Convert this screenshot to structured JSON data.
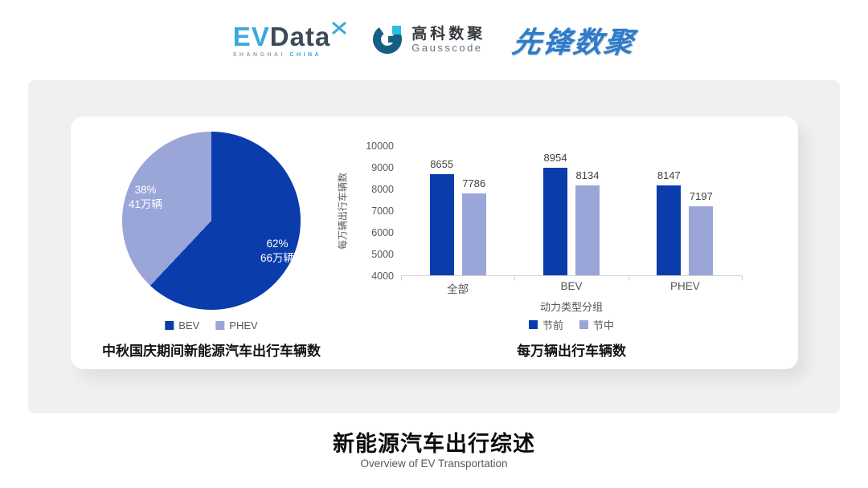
{
  "header": {
    "evdata": {
      "ev": "EV",
      "data": "Data",
      "sub1": "SHANGHAI",
      "sub2": "CHINA"
    },
    "gausscode": {
      "cn": "高科数聚",
      "en": "Gausscode"
    },
    "xianfeng": {
      "text": "先锋数聚"
    }
  },
  "colors": {
    "series_dark_blue": "#0b3cab",
    "series_light_blue": "#9aa5d8",
    "panel_gray": "#f0f0f0",
    "evdata_blue": "#38aadb",
    "evdata_dark": "#3e4a59",
    "gausscode_teal": "#155f82",
    "gausscode_cyan": "#29bfe2",
    "xianfeng_blue": "#2e7cc9"
  },
  "chart_data": [
    {
      "type": "pie",
      "title": "中秋国庆期间新能源汽车出行车辆数",
      "start_angle_deg": 0,
      "legend_position": "bottom",
      "slices": [
        {
          "label": "BEV",
          "percent": 62,
          "pct_label": "62%",
          "value_label": "66万辆",
          "color": "#0b3cab"
        },
        {
          "label": "PHEV",
          "percent": 38,
          "pct_label": "38%",
          "value_label": "41万辆",
          "color": "#9aa5d8"
        }
      ]
    },
    {
      "type": "bar",
      "title": "每万辆出行车辆数",
      "categories": [
        "全部",
        "BEV",
        "PHEV"
      ],
      "series": [
        {
          "name": "节前",
          "values": [
            8655,
            8954,
            8147
          ],
          "color": "#0b3cab"
        },
        {
          "name": "节中",
          "values": [
            7786,
            8134,
            7197
          ],
          "color": "#9aa5d8"
        }
      ],
      "xlabel": "动力类型分组",
      "ylabel": "每万辆出行车辆数",
      "ylim": [
        4000,
        10000
      ],
      "ytick_step": 1000,
      "grid": false,
      "legend_position": "bottom"
    }
  ],
  "footer": {
    "title": "新能源汽车出行综述",
    "subtitle": "Overview of EV Transportation"
  }
}
